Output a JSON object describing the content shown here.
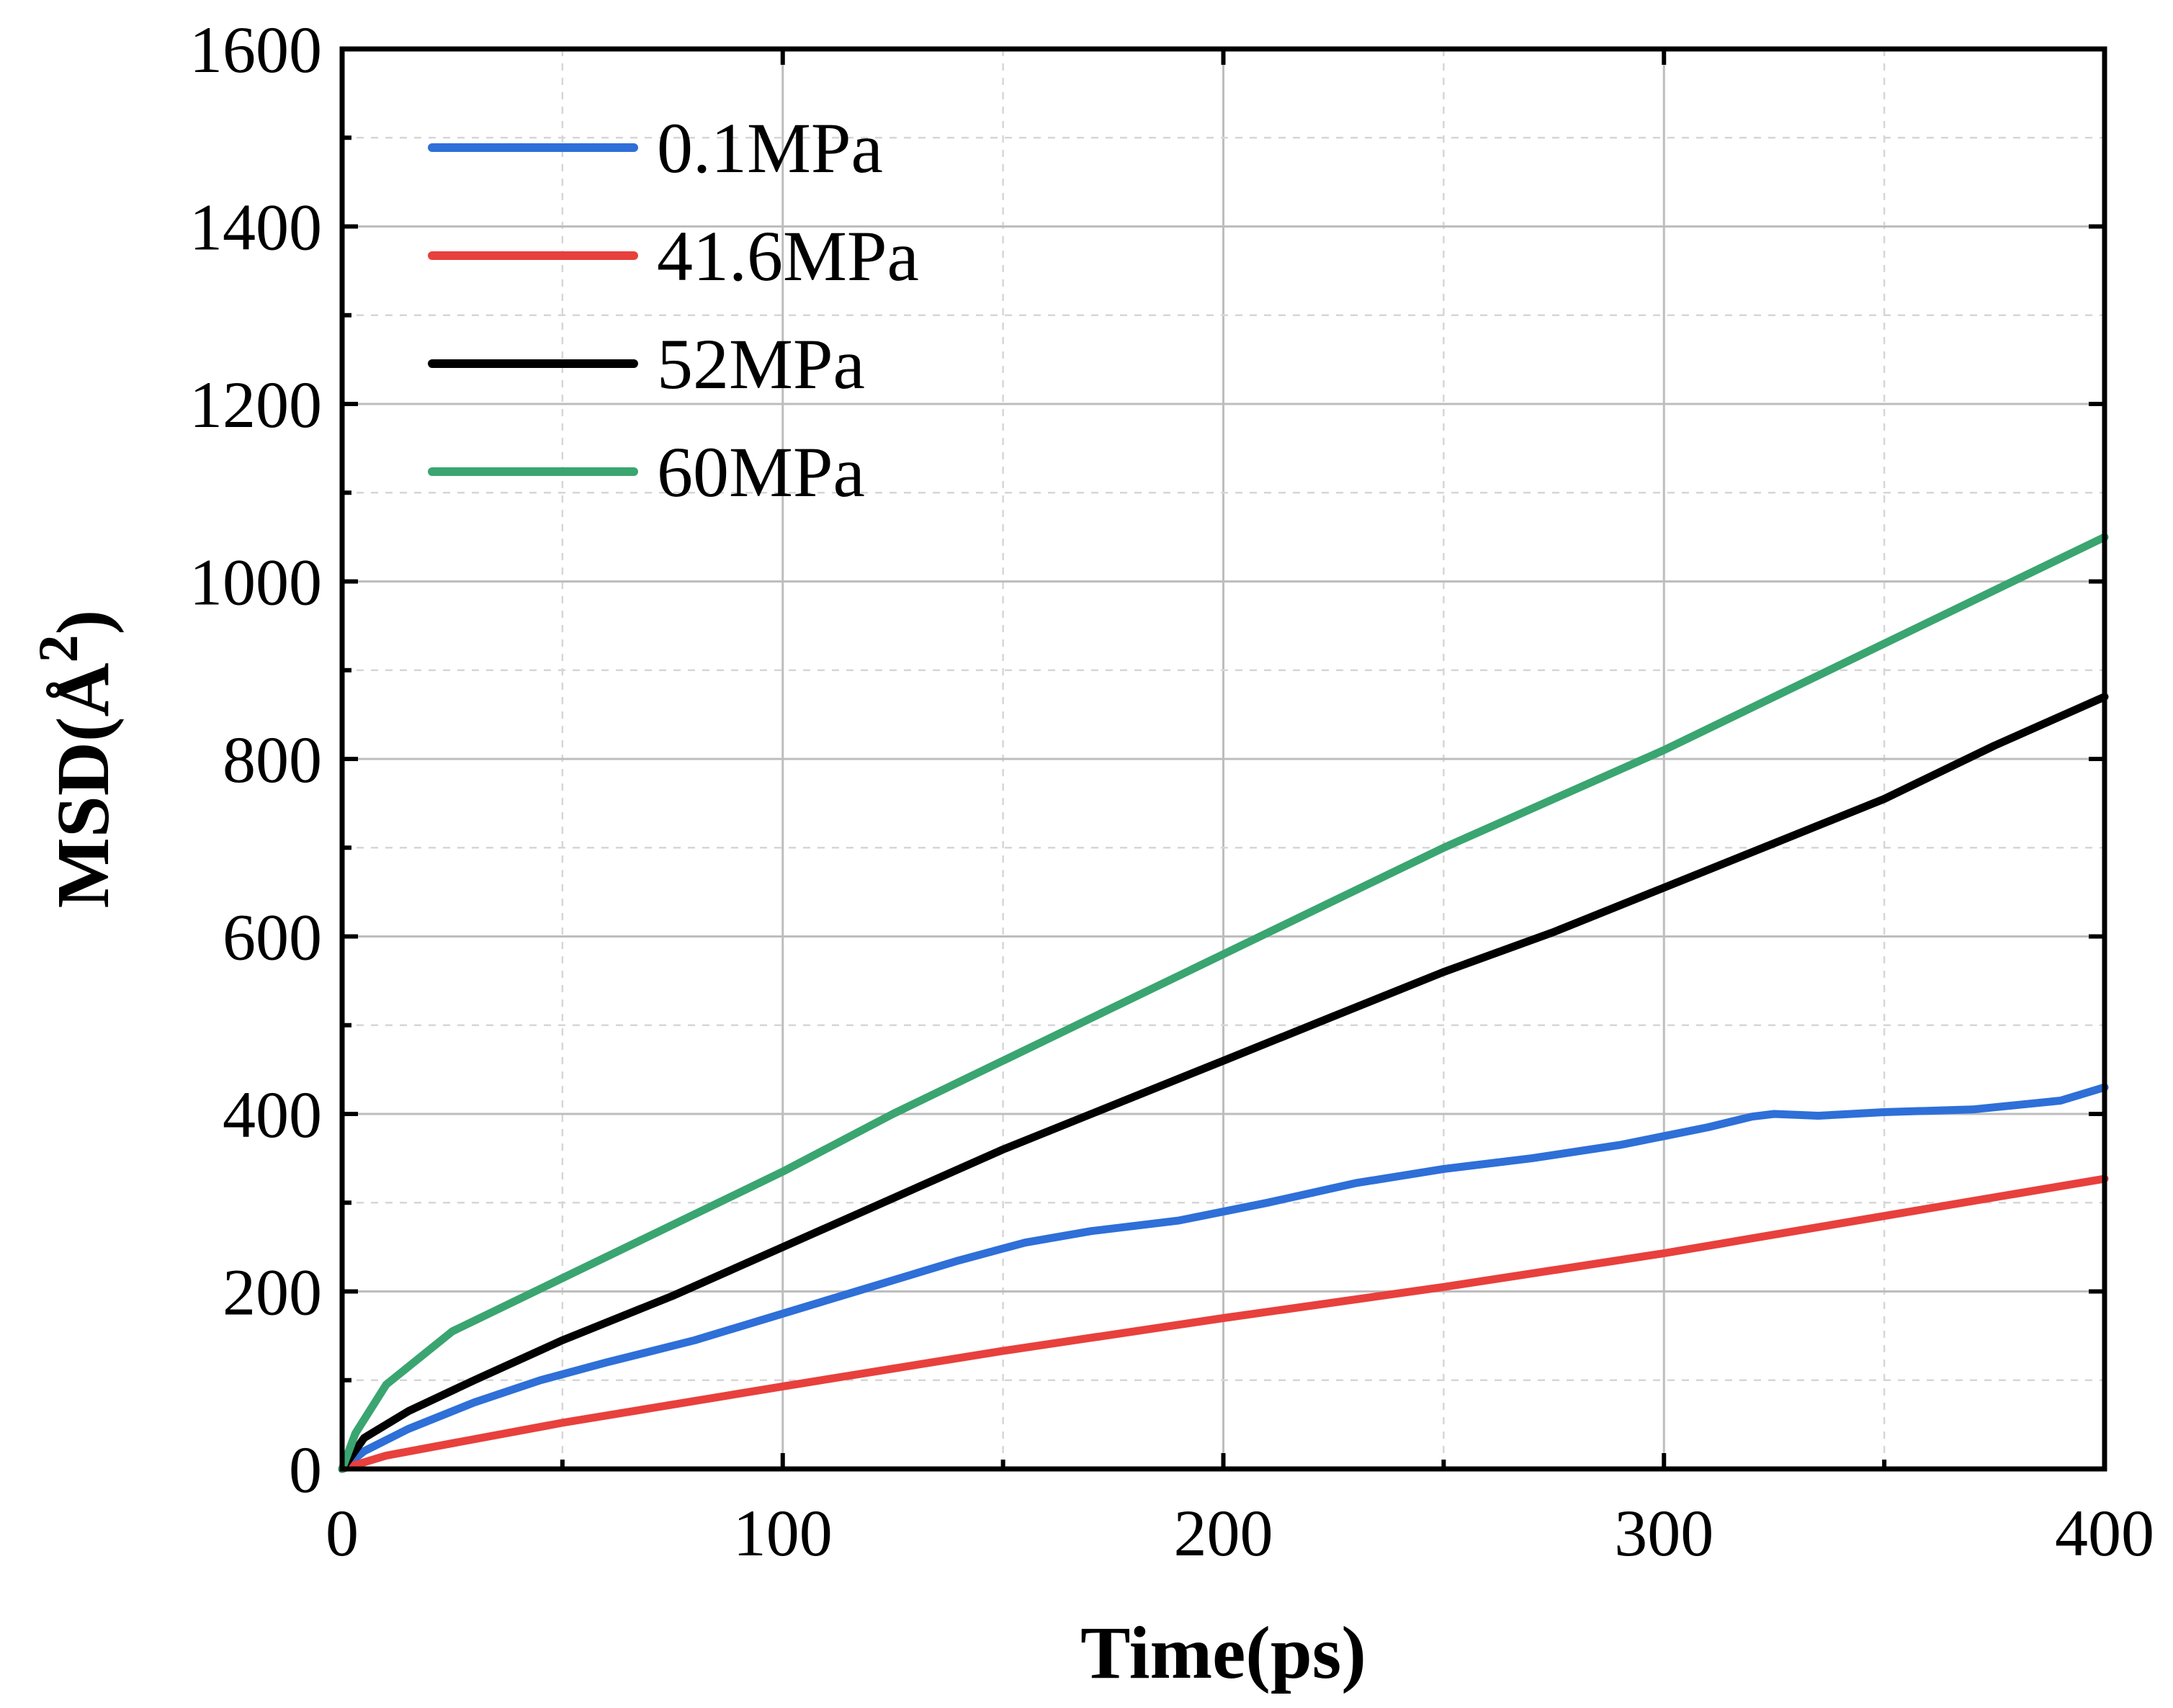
{
  "chart_data": {
    "type": "line",
    "title": "",
    "xlabel": "Time(ps)",
    "ylabel_prefix": "MSD(",
    "ylabel_unit": "Å",
    "ylabel_exponent": "2",
    "ylabel_suffix": ")",
    "xlim": [
      0,
      400
    ],
    "ylim": [
      0,
      1600
    ],
    "xticks": [
      0,
      100,
      200,
      300,
      400
    ],
    "yticks": [
      0,
      200,
      400,
      600,
      800,
      1000,
      1200,
      1400,
      1600
    ],
    "xtick_labels": [
      "0",
      "100",
      "200",
      "300",
      "400"
    ],
    "ytick_labels": [
      "0",
      "200",
      "400",
      "600",
      "800",
      "1000",
      "1200",
      "1400",
      "1600"
    ],
    "grid": true,
    "legend_position": "top-left",
    "series": [
      {
        "name": "0.1MPa",
        "color": "#2e6fd8",
        "x": [
          0,
          5,
          15,
          30,
          45,
          60,
          80,
          100,
          120,
          140,
          155,
          170,
          190,
          210,
          230,
          250,
          270,
          290,
          300,
          310,
          320,
          325,
          335,
          350,
          370,
          390,
          400
        ],
        "y": [
          0,
          20,
          45,
          75,
          100,
          120,
          145,
          175,
          205,
          235,
          255,
          268,
          280,
          300,
          322,
          338,
          350,
          365,
          375,
          385,
          397,
          400,
          398,
          402,
          405,
          415,
          430
        ]
      },
      {
        "name": "41.6MPa",
        "color": "#e8403c",
        "x": [
          0,
          10,
          50,
          100,
          150,
          200,
          250,
          300,
          350,
          400
        ],
        "y": [
          0,
          15,
          52,
          93,
          133,
          170,
          205,
          243,
          285,
          327
        ]
      },
      {
        "name": "52MPa",
        "color": "#000000",
        "x": [
          0,
          5,
          15,
          30,
          50,
          75,
          100,
          125,
          150,
          175,
          200,
          225,
          250,
          275,
          300,
          325,
          350,
          375,
          400
        ],
        "y": [
          0,
          35,
          65,
          100,
          145,
          195,
          250,
          305,
          360,
          410,
          460,
          510,
          560,
          605,
          655,
          705,
          755,
          815,
          870
        ]
      },
      {
        "name": "60MPa",
        "color": "#3aa570",
        "x": [
          0,
          3,
          10,
          25,
          50,
          75,
          100,
          125,
          150,
          175,
          200,
          225,
          250,
          275,
          300,
          325,
          350,
          375,
          400
        ],
        "y": [
          0,
          40,
          95,
          155,
          215,
          275,
          335,
          400,
          460,
          520,
          580,
          640,
          700,
          755,
          810,
          870,
          930,
          990,
          1050
        ]
      }
    ]
  }
}
